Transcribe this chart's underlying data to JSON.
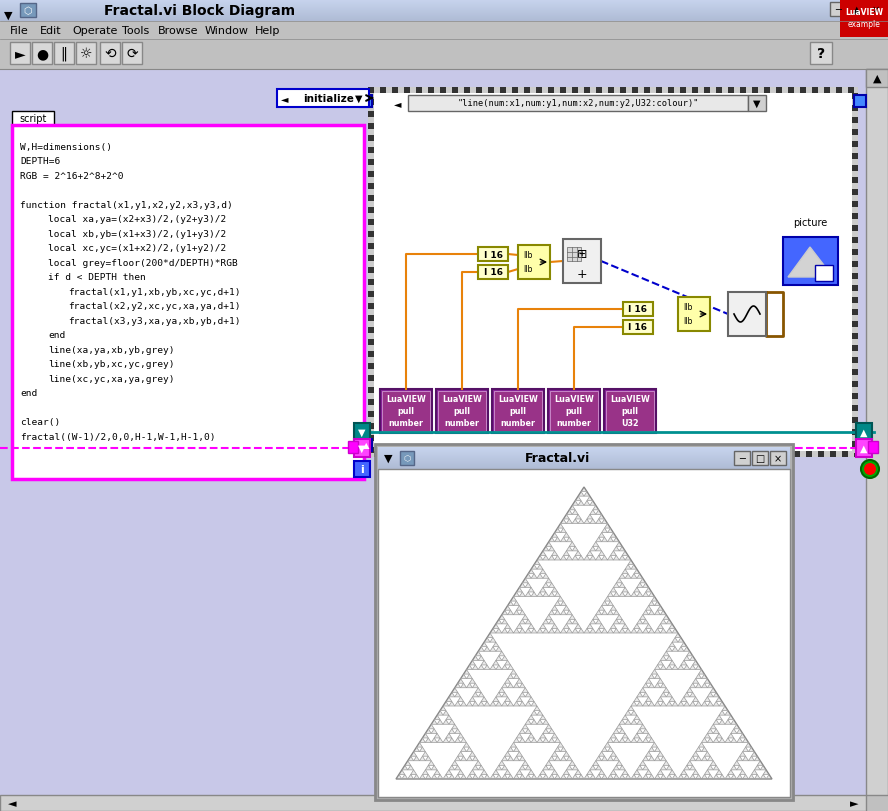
{
  "title": "Fractal.vi Block Diagram",
  "fractal_title": "Fractal.vi",
  "bg_color": "#c0c0c0",
  "titlebar_color": "#b8d0e8",
  "diagram_bg": "#c8c8e8",
  "script_text": [
    "W,H=dimensions()",
    "DEPTH=6",
    "RGB = 2^16+2^8+2^0",
    "",
    "function fractal(x1,y1,x2,y2,x3,y3,d)",
    "      local xa,ya=(x2+x3)/2,(y2+y3)/2",
    "      local xb,yb=(x1+x3)/2,(y1+y3)/2",
    "      local xc,yc=(x1+x2)/2,(y1+y2)/2",
    "      local grey=floor(200*d/DEPTH)*RGB",
    "      if d < DEPTH then",
    "            fractal(x1,y1,xb,yb,xc,yc,d+1)",
    "            fractal(x2,y2,xc,yc,xa,ya,d+1)",
    "            fractal(x3,y3,xa,ya,xb,yb,d+1)",
    "      end",
    "      line(xa,ya,xb,yb,grey)",
    "      line(xb,yb,xc,yc,grey)",
    "      line(xc,yc,xa,ya,grey)",
    "end",
    "",
    "clear()",
    "fractal((W-1)/2,0,0,H-1,W-1,H-1,0)"
  ],
  "luaview_labels": [
    "LuaVIEW\npull\nnumber",
    "LuaVIEW\npull\nnumber",
    "LuaVIEW\npull\nnumber",
    "LuaVIEW\npull\nnumber",
    "LuaVIEW\npull\nU32"
  ],
  "wire_orange": "#e8820a",
  "wire_blue": "#0000cc",
  "wire_teal": "#009090",
  "wire_pink": "#ff00ff",
  "wire_brown": "#885500"
}
